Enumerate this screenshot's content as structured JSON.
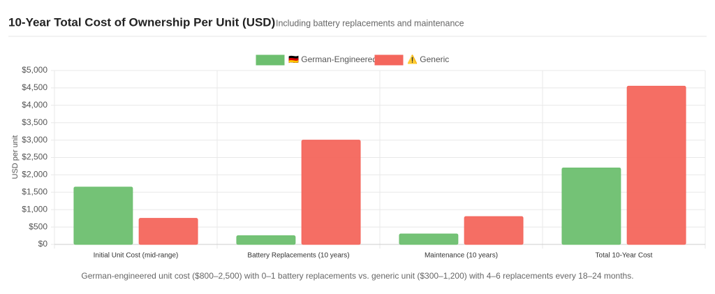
{
  "chart_data": {
    "type": "bar",
    "title": "10-Year Total Cost of Ownership Per Unit (USD)",
    "subtitle": "Including battery replacements and maintenance",
    "y_label": "USD per unit",
    "footnote": "German-engineered unit cost ($800–2,500) with 0–1 battery replacements vs. generic unit ($300–1,200) with 4–6 replacements every 18–24 months.",
    "categories": [
      "Initial Unit Cost (mid-range)",
      "Battery Replacements (10 years)",
      "Maintenance (10 years)",
      "Total 10-Year Cost"
    ],
    "series": [
      {
        "name": "🇩🇪 German-Engineered",
        "color": "#6dbf6f",
        "values": [
          1650,
          250,
          300,
          2200
        ]
      },
      {
        "name": "⚠️ Generic",
        "color": "#f4665c",
        "values": [
          750,
          3000,
          800,
          4550
        ]
      }
    ],
    "ylim": [
      0,
      5000
    ],
    "yticks": [
      {
        "value": 0,
        "label": "$0"
      },
      {
        "value": 500,
        "label": "$500"
      },
      {
        "value": 1000,
        "label": "$1,000"
      },
      {
        "value": 1500,
        "label": "$1,500"
      },
      {
        "value": 2000,
        "label": "$2,000"
      },
      {
        "value": 2500,
        "label": "$2,500"
      },
      {
        "value": 3000,
        "label": "$3,000"
      },
      {
        "value": 3500,
        "label": "$3,500"
      },
      {
        "value": 4000,
        "label": "$4,000"
      },
      {
        "value": 4500,
        "label": "$4,500"
      },
      {
        "value": 5000,
        "label": "$5,000"
      }
    ],
    "grid": true,
    "legend": "top"
  }
}
